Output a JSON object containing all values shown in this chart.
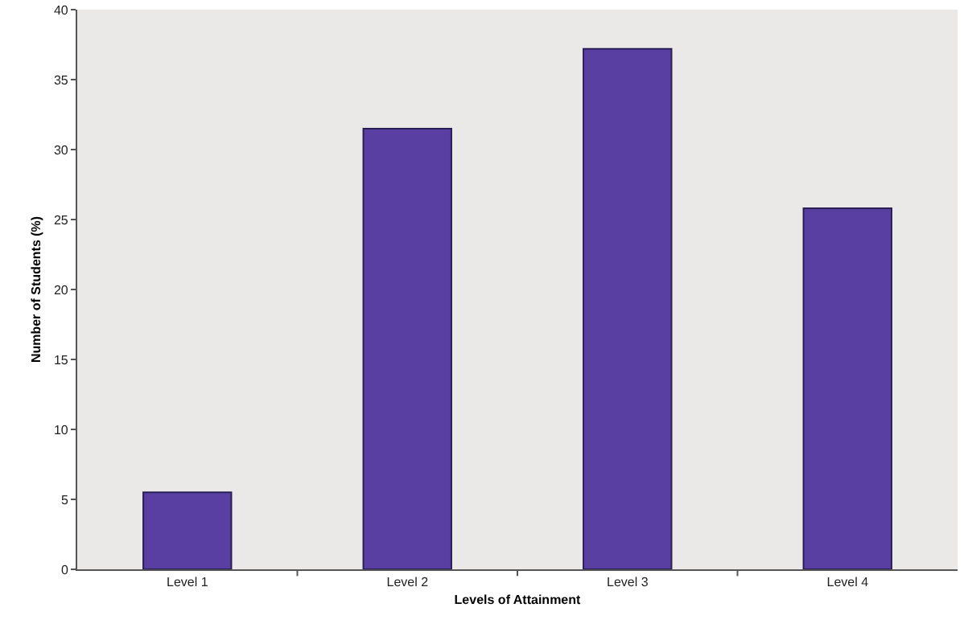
{
  "chart_data": {
    "type": "bar",
    "xlabel": "Levels of Attainment",
    "ylabel": "Number of Students (%)",
    "categories": [
      "Level 1",
      "Level 2",
      "Level 3",
      "Level 4"
    ],
    "values": [
      5.5,
      31.5,
      37.2,
      25.8
    ],
    "color": "#5a3fa3",
    "ylim": [
      0,
      40
    ],
    "yticks": [
      0,
      5,
      10,
      15,
      20,
      25,
      30,
      35,
      40
    ],
    "grid": false
  }
}
